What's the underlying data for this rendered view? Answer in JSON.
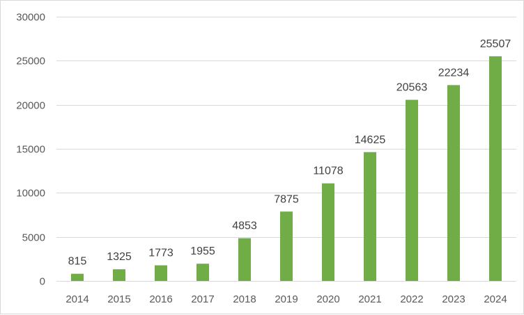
{
  "chart_data": {
    "type": "bar",
    "title": "",
    "xlabel": "",
    "ylabel": "",
    "categories": [
      "2014",
      "2015",
      "2016",
      "2017",
      "2018",
      "2019",
      "2020",
      "2021",
      "2022",
      "2023",
      "2024"
    ],
    "values": [
      815,
      1325,
      1773,
      1955,
      4853,
      7875,
      11078,
      14625,
      20563,
      22234,
      25507
    ],
    "ylim": [
      0,
      30000
    ],
    "yticks": [
      0,
      5000,
      10000,
      15000,
      20000,
      25000,
      30000
    ],
    "grid": true,
    "legend": "none",
    "data_labels": true,
    "bar_color": "#70ad47",
    "gridline_color": "#d9d9d9",
    "text_color": "#595959"
  }
}
